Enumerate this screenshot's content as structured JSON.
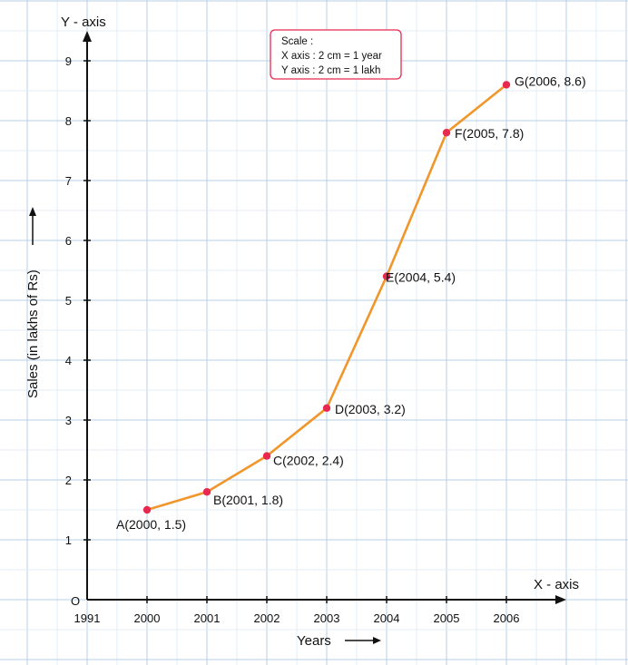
{
  "colors": {
    "grid_minor": "#dce8f4",
    "grid_major": "#b7d0e9",
    "line": "#f0962a",
    "marker": "#e8284e",
    "axis": "#111111",
    "scale_border": "#e8284e"
  },
  "scale_box": {
    "title": "Scale :",
    "line1": "X axis : 2 cm = 1 year",
    "line2": "Y axis : 2 cm = 1 lakh"
  },
  "chart_data": {
    "type": "line",
    "xlabel": "Years",
    "ylabel": "Sales (in lakhs of Rs)",
    "x_axis_name": "X - axis",
    "y_axis_name": "Y - axis",
    "origin_label": "O",
    "x_first_tick": "1991",
    "categories": [
      "2000",
      "2001",
      "2002",
      "2003",
      "2004",
      "2005",
      "2006"
    ],
    "yticks": [
      "1",
      "2",
      "3",
      "4",
      "5",
      "6",
      "7",
      "8",
      "9"
    ],
    "ylim": [
      0,
      9
    ],
    "grid": true,
    "series": [
      {
        "points": [
          {
            "name": "A",
            "x": 2000,
            "y": 1.5,
            "label": "A(2000, 1.5)"
          },
          {
            "name": "B",
            "x": 2001,
            "y": 1.8,
            "label": "B(2001, 1.8)"
          },
          {
            "name": "C",
            "x": 2002,
            "y": 2.4,
            "label": "C(2002, 2.4)"
          },
          {
            "name": "D",
            "x": 2003,
            "y": 3.2,
            "label": "D(2003, 3.2)"
          },
          {
            "name": "E",
            "x": 2004,
            "y": 5.4,
            "label": "E(2004, 5.4)"
          },
          {
            "name": "F",
            "x": 2005,
            "y": 7.8,
            "label": "F(2005, 7.8)"
          },
          {
            "name": "G",
            "x": 2006,
            "y": 8.6,
            "label": "G(2006, 8.6)"
          }
        ]
      }
    ]
  }
}
